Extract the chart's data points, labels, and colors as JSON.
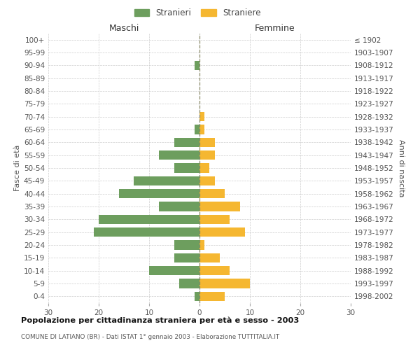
{
  "age_groups": [
    "0-4",
    "5-9",
    "10-14",
    "15-19",
    "20-24",
    "25-29",
    "30-34",
    "35-39",
    "40-44",
    "45-49",
    "50-54",
    "55-59",
    "60-64",
    "65-69",
    "70-74",
    "75-79",
    "80-84",
    "85-89",
    "90-94",
    "95-99",
    "100+"
  ],
  "birth_years": [
    "1998-2002",
    "1993-1997",
    "1988-1992",
    "1983-1987",
    "1978-1982",
    "1973-1977",
    "1968-1972",
    "1963-1967",
    "1958-1962",
    "1953-1957",
    "1948-1952",
    "1943-1947",
    "1938-1942",
    "1933-1937",
    "1928-1932",
    "1923-1927",
    "1918-1922",
    "1913-1917",
    "1908-1912",
    "1903-1907",
    "≤ 1902"
  ],
  "maschi": [
    1,
    4,
    10,
    5,
    5,
    21,
    20,
    8,
    16,
    13,
    5,
    8,
    5,
    1,
    0,
    0,
    0,
    0,
    1,
    0,
    0
  ],
  "femmine": [
    5,
    10,
    6,
    4,
    1,
    9,
    6,
    8,
    5,
    3,
    2,
    3,
    3,
    1,
    1,
    0,
    0,
    0,
    0,
    0,
    0
  ],
  "color_maschi": "#6d9e5e",
  "color_femmine": "#f5b731",
  "title": "Popolazione per cittadinanza straniera per età e sesso - 2003",
  "subtitle": "COMUNE DI LATIANO (BR) - Dati ISTAT 1° gennaio 2003 - Elaborazione TUTTITALIA.IT",
  "ylabel_left": "Fasce di età",
  "ylabel_right": "Anni di nascita",
  "xlabel_left": "Maschi",
  "xlabel_right": "Femmine",
  "legend_stranieri": "Stranieri",
  "legend_straniere": "Straniere",
  "xlim": 30,
  "background_color": "#ffffff",
  "grid_color": "#cccccc"
}
